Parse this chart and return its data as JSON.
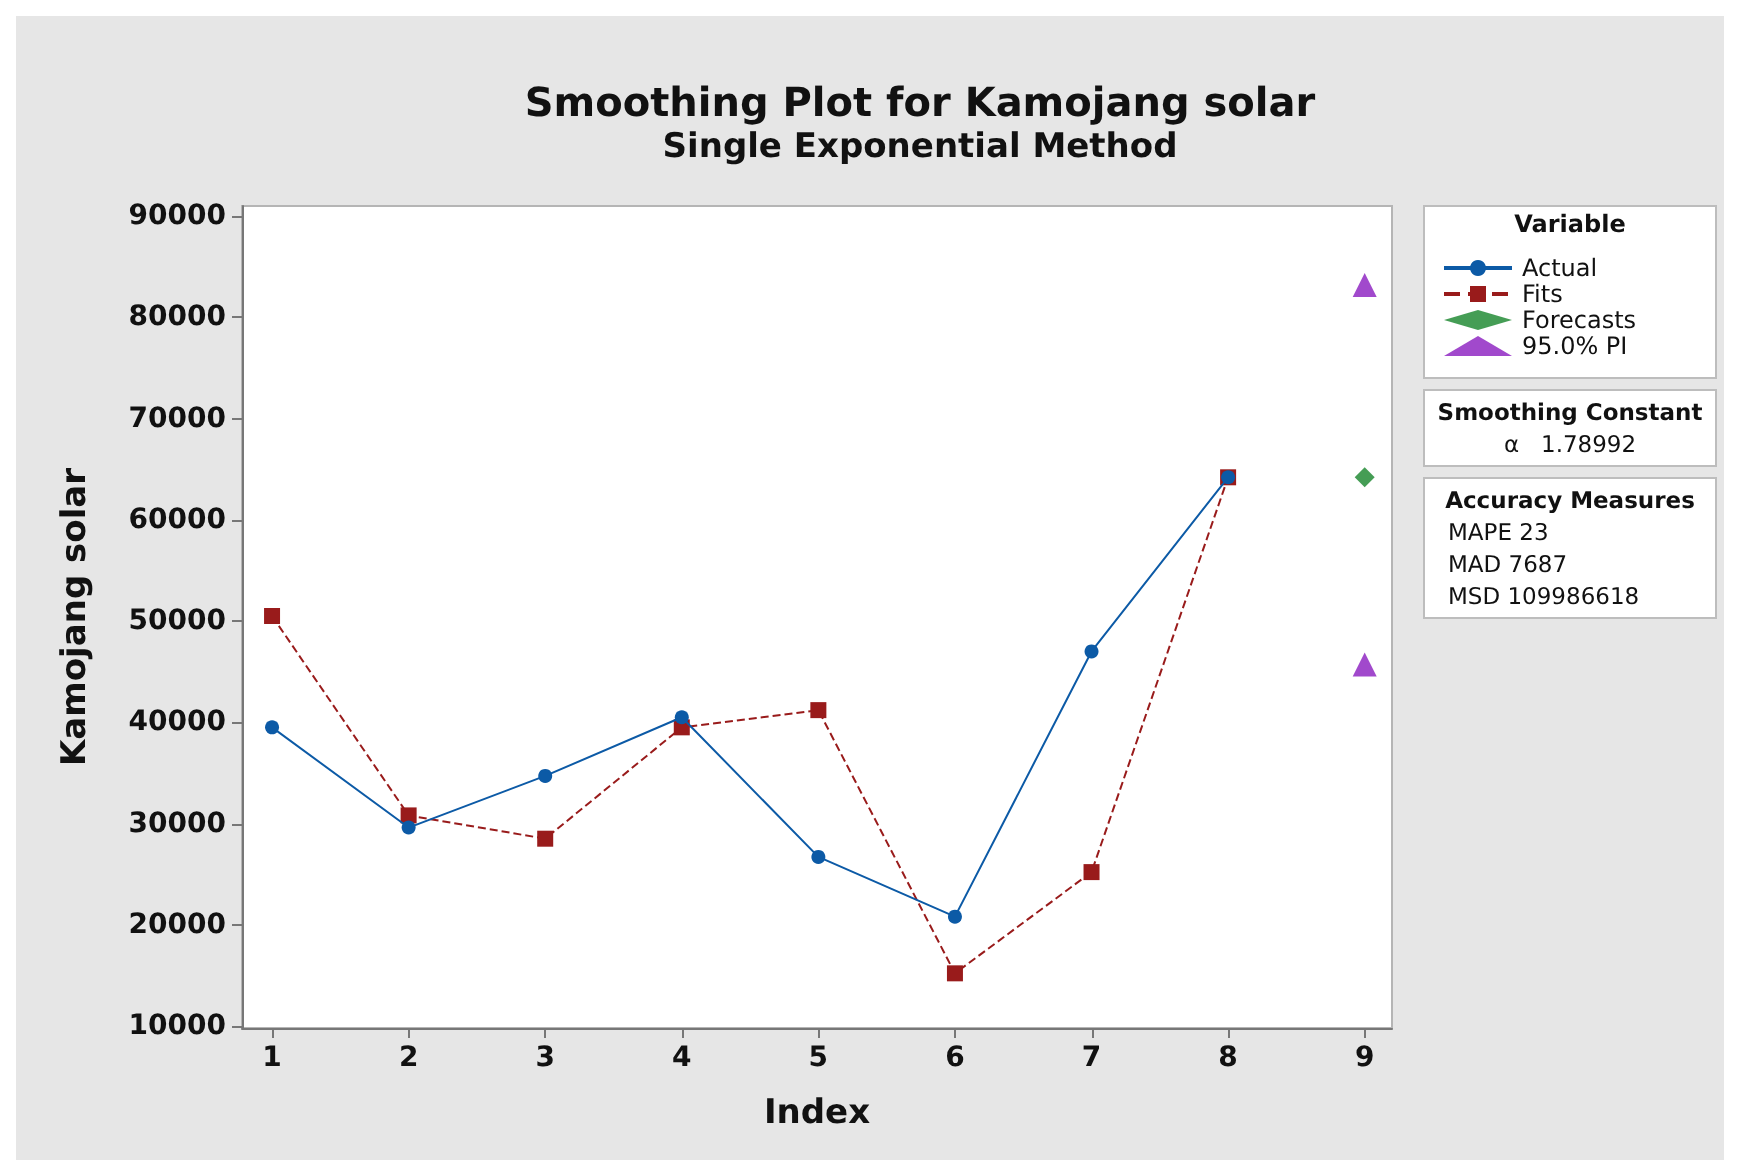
{
  "chart_data": {
    "type": "line",
    "title": "Smoothing Plot for Kamojang solar",
    "subtitle": "Single Exponential Method",
    "xlabel": "Index",
    "ylabel": "Kamojang solar",
    "legend_title": "Variable",
    "legend": "top right",
    "grid": false,
    "x": [
      1,
      2,
      3,
      4,
      5,
      6,
      7,
      8,
      9
    ],
    "xlim": [
      0.78,
      9.2
    ],
    "xticks": [
      1,
      2,
      3,
      4,
      5,
      6,
      7,
      8,
      9
    ],
    "ylim": [
      9800,
      91000
    ],
    "yticks": [
      10000,
      20000,
      30000,
      40000,
      50000,
      60000,
      70000,
      80000,
      90000
    ],
    "series": [
      {
        "name": "Actual",
        "color": "#0c5aa6",
        "marker": "circle",
        "line_style": "solid",
        "values": [
          39500,
          29600,
          34700,
          40500,
          26700,
          20800,
          47000,
          64200,
          null
        ]
      },
      {
        "name": "Fits",
        "color": "#991b1b",
        "marker": "square",
        "line_style": "dashed",
        "values": [
          50500,
          30800,
          28500,
          39500,
          41200,
          15200,
          25200,
          64200,
          null
        ]
      },
      {
        "name": "Forecasts",
        "type": "scatter",
        "color": "#16852a",
        "marker": "diamond",
        "values": [
          null,
          null,
          null,
          null,
          null,
          null,
          null,
          null,
          64200
        ]
      },
      {
        "name": "95.0% PI",
        "type": "scatter",
        "color": "#8a1cbf",
        "marker": "triangle",
        "values": [
          null,
          null,
          null,
          null,
          null,
          null,
          null,
          null,
          83200
        ]
      },
      {
        "type": "scatter",
        "color": "#8a1cbf",
        "marker": "triangle",
        "values": [
          null,
          null,
          null,
          null,
          null,
          null,
          null,
          null,
          45700
        ]
      }
    ],
    "annotations": [
      "Smoothing Constant",
      "α   1.78992",
      "Accuracy Measures",
      "MAPE 23",
      "MAD 7687",
      "MSD 109986618"
    ]
  }
}
